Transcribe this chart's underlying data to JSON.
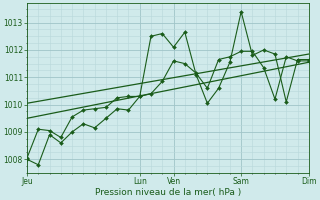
{
  "title": "",
  "xlabel": "Pression niveau de la mer( hPa )",
  "bg_color": "#d0eaeb",
  "grid_major_color": "#a0c4c8",
  "grid_minor_color": "#b8d8da",
  "line_color": "#1a5c1a",
  "ylim": [
    1007.5,
    1013.7
  ],
  "yticks": [
    1008,
    1009,
    1010,
    1011,
    1012,
    1013
  ],
  "xtick_labels": [
    "Jeu",
    "Lun",
    "Ven",
    "Sam",
    "Dim"
  ],
  "xtick_positions": [
    0,
    10,
    13,
    19,
    25
  ],
  "xlim": [
    0,
    25
  ],
  "series1_x": [
    0,
    1,
    2,
    3,
    4,
    5,
    6,
    7,
    8,
    9,
    10,
    11,
    12,
    13,
    14,
    15,
    16,
    17,
    18,
    19,
    20,
    21,
    22,
    23,
    24,
    25
  ],
  "series1_y": [
    1008.0,
    1007.8,
    1008.9,
    1008.6,
    1009.0,
    1009.3,
    1009.15,
    1009.5,
    1009.85,
    1009.8,
    1010.3,
    1012.5,
    1012.6,
    1012.1,
    1012.65,
    1011.1,
    1010.05,
    1010.6,
    1011.55,
    1013.4,
    1011.8,
    1012.0,
    1011.85,
    1010.1,
    1011.65,
    1011.65
  ],
  "series2_x": [
    0,
    1,
    2,
    3,
    4,
    5,
    6,
    7,
    8,
    9,
    10,
    11,
    12,
    13,
    14,
    15,
    16,
    17,
    18,
    19,
    20,
    21,
    22,
    23,
    24,
    25
  ],
  "series2_y": [
    1008.05,
    1009.1,
    1009.05,
    1008.8,
    1009.55,
    1009.8,
    1009.85,
    1009.9,
    1010.25,
    1010.3,
    1010.3,
    1010.4,
    1010.85,
    1011.6,
    1011.5,
    1011.15,
    1010.6,
    1011.65,
    1011.75,
    1011.95,
    1011.95,
    1011.35,
    1010.2,
    1011.75,
    1011.6,
    1011.6
  ],
  "trend1_x": [
    0,
    25
  ],
  "trend1_y": [
    1009.5,
    1011.55
  ],
  "trend2_x": [
    0,
    25
  ],
  "trend2_y": [
    1010.05,
    1011.85
  ]
}
